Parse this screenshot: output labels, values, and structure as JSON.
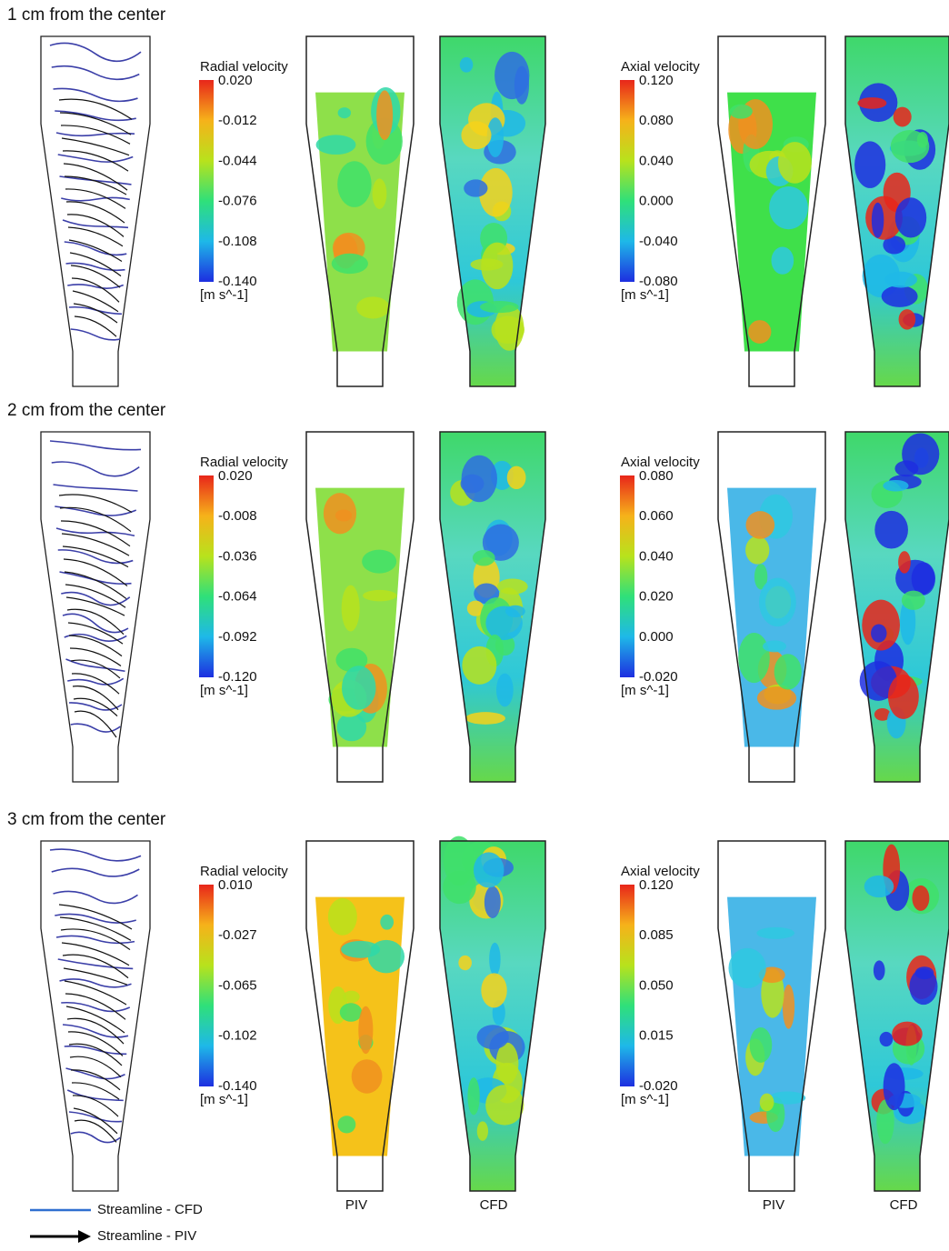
{
  "rows": [
    {
      "title": "1 cm from the center",
      "radial": {
        "label": "Radial velocity",
        "ticks": [
          "0.020",
          "-0.012",
          "-0.044",
          "-0.076",
          "-0.108",
          "-0.140"
        ],
        "unit": "[m s^-1]"
      },
      "axial": {
        "label": "Axial velocity",
        "ticks": [
          "0.120",
          "0.080",
          "0.040",
          "0.000",
          "-0.040",
          "-0.080"
        ],
        "unit": "[m s^-1]"
      }
    },
    {
      "title": "2 cm from the center",
      "radial": {
        "label": "Radial velocity",
        "ticks": [
          "0.020",
          "-0.008",
          "-0.036",
          "-0.064",
          "-0.092",
          "-0.120"
        ],
        "unit": "[m s^-1]"
      },
      "axial": {
        "label": "Axial velocity",
        "ticks": [
          "0.080",
          "0.060",
          "0.040",
          "0.020",
          "0.000",
          "-0.020"
        ],
        "unit": "[m s^-1]"
      }
    },
    {
      "title": "3 cm from the center",
      "radial": {
        "label": "Radial velocity",
        "ticks": [
          "0.010",
          "-0.027",
          "-0.065",
          "-0.102",
          "-0.140"
        ],
        "unit": "[m s^-1]"
      },
      "axial": {
        "label": "Axial velocity",
        "ticks": [
          "0.120",
          "0.085",
          "0.050",
          "0.015",
          "-0.020"
        ],
        "unit": "[m s^-1]"
      }
    }
  ],
  "column_labels": [
    "PIV",
    "CFD",
    "PIV",
    "CFD"
  ],
  "legend": [
    "Streamline - CFD",
    "Streamline - PIV"
  ]
}
